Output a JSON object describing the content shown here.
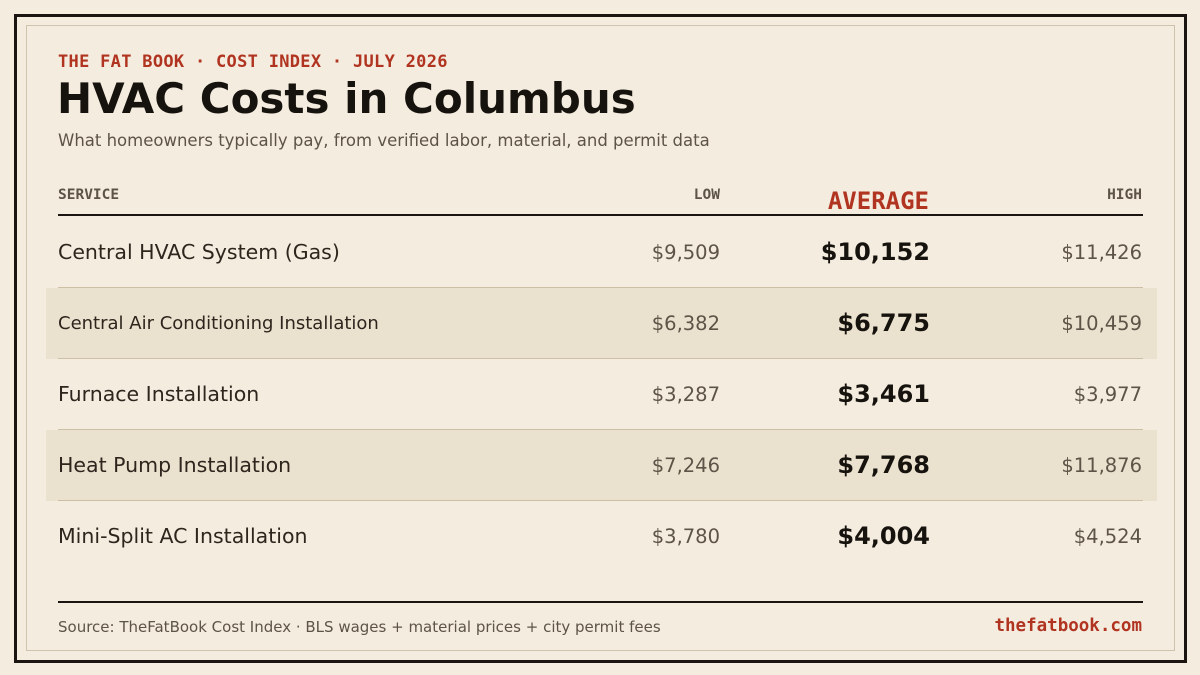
{
  "header": {
    "kicker": "THE FAT BOOK · COST INDEX · JULY 2026",
    "title": "HVAC Costs in Columbus",
    "subtitle": "What homeowners typically pay, from verified labor, material, and permit data"
  },
  "table": {
    "columns": {
      "service": "SERVICE",
      "low": "LOW",
      "average": "AVERAGE",
      "high": "HIGH"
    },
    "rows": [
      {
        "service": "Central HVAC System (Gas)",
        "low": "$9,509",
        "average": "$10,152",
        "high": "$11,426"
      },
      {
        "service": "Central Air Conditioning Installation",
        "low": "$6,382",
        "average": "$6,775",
        "high": "$10,459"
      },
      {
        "service": "Furnace Installation",
        "low": "$3,287",
        "average": "$3,461",
        "high": "$3,977"
      },
      {
        "service": "Heat Pump Installation",
        "low": "$7,246",
        "average": "$7,768",
        "high": "$11,876"
      },
      {
        "service": "Mini-Split AC Installation",
        "low": "$3,780",
        "average": "$4,004",
        "high": "$4,524"
      }
    ]
  },
  "footer": {
    "source": "Source: TheFatBook Cost Index · BLS wages + material prices + city permit fees",
    "site": "thefatbook.com"
  },
  "colors": {
    "background": "#f4ecdf",
    "accent": "#b03420",
    "ink": "#16120d",
    "row_shade": "#ebe1cf"
  }
}
